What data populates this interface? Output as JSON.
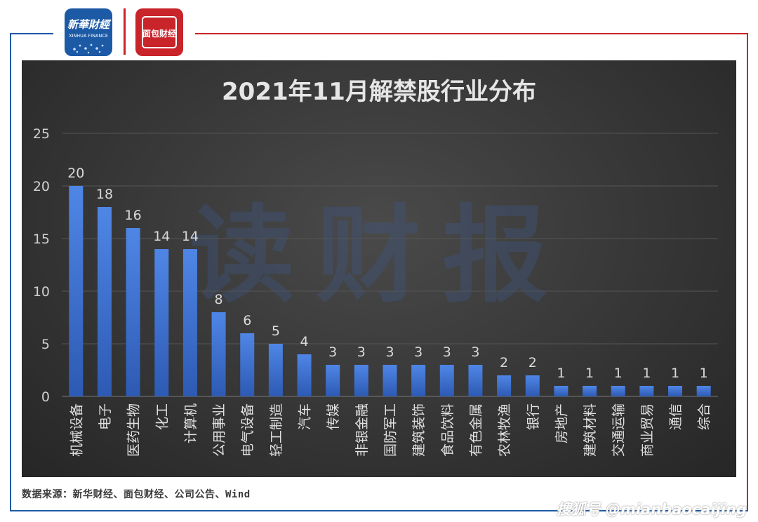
{
  "header": {
    "xinhua_logo_text": "新華財經",
    "xinhua_logo_sub": "XINHUA FINANCE",
    "mianbao_logo_text": "面包财经",
    "colors": {
      "blue": "#1d5aa6",
      "red": "#c8242a"
    }
  },
  "watermark": "读财报",
  "source_note": "数据来源：新华财经、面包财经、公司公告、Wind",
  "credit": "搜狐号 @mianbaocaijing",
  "chart_data": {
    "type": "bar",
    "title": "2021年11月解禁股行业分布",
    "xlabel": "",
    "ylabel": "",
    "categories": [
      "机械设备",
      "电子",
      "医药生物",
      "化工",
      "计算机",
      "公用事业",
      "电气设备",
      "轻工制造",
      "汽车",
      "传媒",
      "非银金融",
      "国防军工",
      "建筑装饰",
      "食品饮料",
      "有色金属",
      "农林牧渔",
      "银行",
      "房地产",
      "建筑材料",
      "交通运输",
      "商业贸易",
      "通信",
      "综合"
    ],
    "values": [
      20,
      18,
      16,
      14,
      14,
      8,
      6,
      5,
      4,
      3,
      3,
      3,
      3,
      3,
      3,
      2,
      2,
      1,
      1,
      1,
      1,
      1,
      1
    ],
    "ylim": [
      0,
      25
    ],
    "yticks": [
      0,
      5,
      10,
      15,
      20,
      25
    ],
    "grid": true,
    "data_labels": true,
    "colors": {
      "bar_top": "#4f86e6",
      "bar_bottom": "#2d5ab3",
      "background": "#383838",
      "text": "#d9d9d9",
      "grid": "#5a5a5a"
    }
  }
}
